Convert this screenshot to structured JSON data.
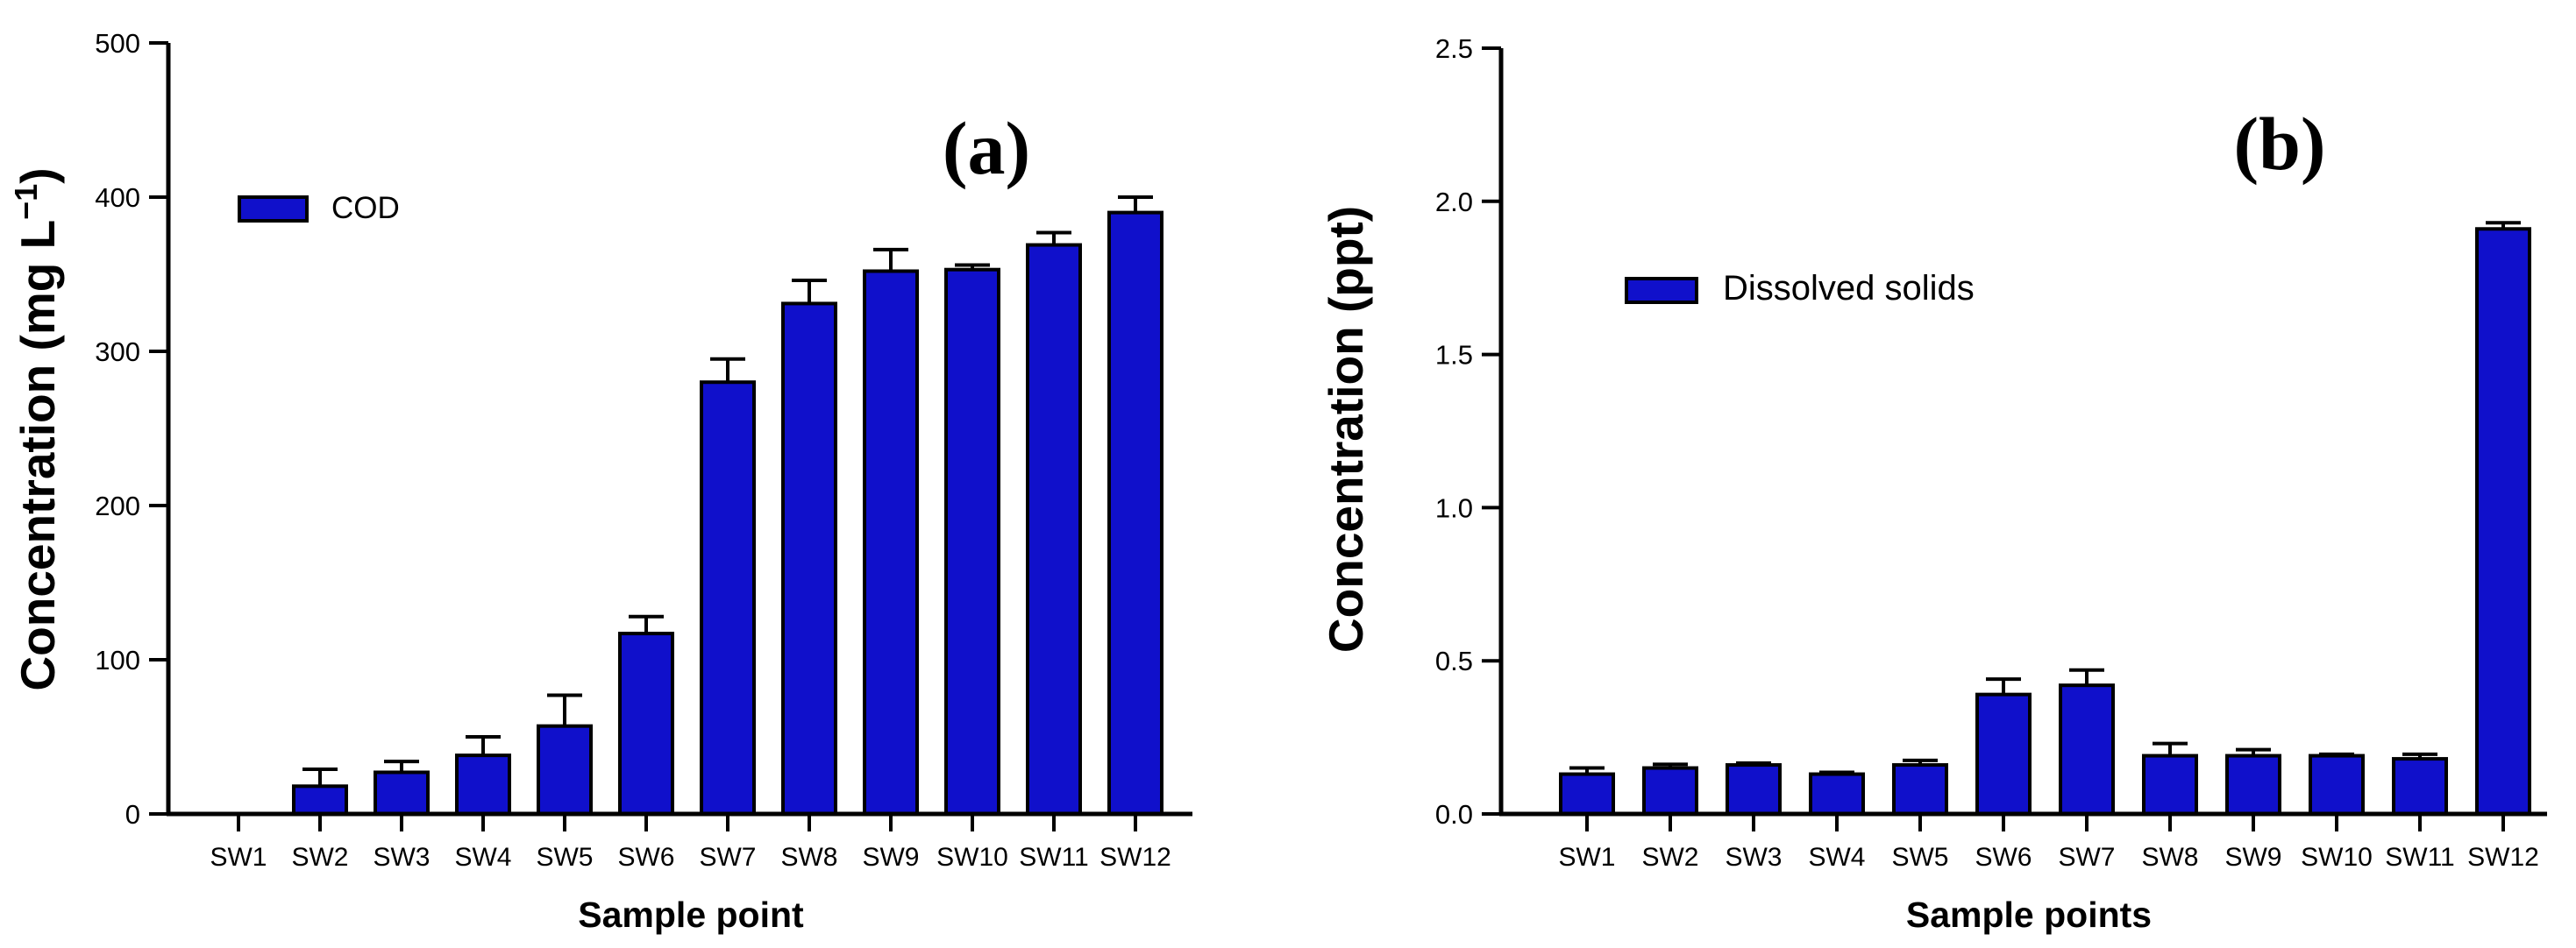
{
  "figure": {
    "background": "#ffffff",
    "bar_fill": "#1010cb",
    "bar_stroke": "#000000",
    "axis_color": "#000000"
  },
  "chart_data": [
    {
      "type": "bar",
      "panel_label": "(a)",
      "legend": "COD",
      "legend_position": "upper-left-inside",
      "xlabel": "Sample point",
      "ylabel": "Concentration (mg L⁻¹)",
      "ylabel_parts": {
        "main": "Concentration (mg L",
        "sup": "−1",
        "close": ")"
      },
      "categories": [
        "SW1",
        "SW2",
        "SW3",
        "SW4",
        "SW5",
        "SW6",
        "SW7",
        "SW8",
        "SW9",
        "SW10",
        "SW11",
        "SW12"
      ],
      "values": [
        0,
        18,
        27,
        38,
        57,
        117,
        280,
        331,
        352,
        353,
        369,
        390
      ],
      "errors_plus": [
        0,
        11,
        7,
        12,
        20,
        11,
        15,
        15,
        14,
        3,
        8,
        10
      ],
      "ylim": [
        0,
        500
      ],
      "ytick_values": [
        0,
        100,
        200,
        300,
        400,
        500
      ],
      "ytick_labels": [
        "0",
        "100",
        "200",
        "300",
        "400",
        "500"
      ],
      "grid": false
    },
    {
      "type": "bar",
      "panel_label": "(b)",
      "legend": "Dissolved solids",
      "legend_position": "upper-left-inside",
      "xlabel": "Sample points",
      "ylabel": "Concentration (ppt)",
      "ylabel_parts": {
        "main": "Concentration (ppt)",
        "sup": "",
        "close": ""
      },
      "categories": [
        "SW1",
        "SW2",
        "SW3",
        "SW4",
        "SW5",
        "SW6",
        "SW7",
        "SW8",
        "SW9",
        "SW10",
        "SW11",
        "SW12"
      ],
      "values": [
        0.13,
        0.15,
        0.16,
        0.13,
        0.16,
        0.39,
        0.42,
        0.19,
        0.19,
        0.19,
        0.18,
        1.91
      ],
      "errors_plus": [
        0.02,
        0.012,
        0.006,
        0.006,
        0.015,
        0.05,
        0.05,
        0.04,
        0.02,
        0.005,
        0.015,
        0.02
      ],
      "ylim": [
        0,
        2.5
      ],
      "ytick_values": [
        0,
        0.5,
        1.0,
        1.5,
        2.0,
        2.5
      ],
      "ytick_labels": [
        "0.0",
        "0.5",
        "1.0",
        "1.5",
        "2.0",
        "2.5"
      ],
      "grid": false
    }
  ]
}
